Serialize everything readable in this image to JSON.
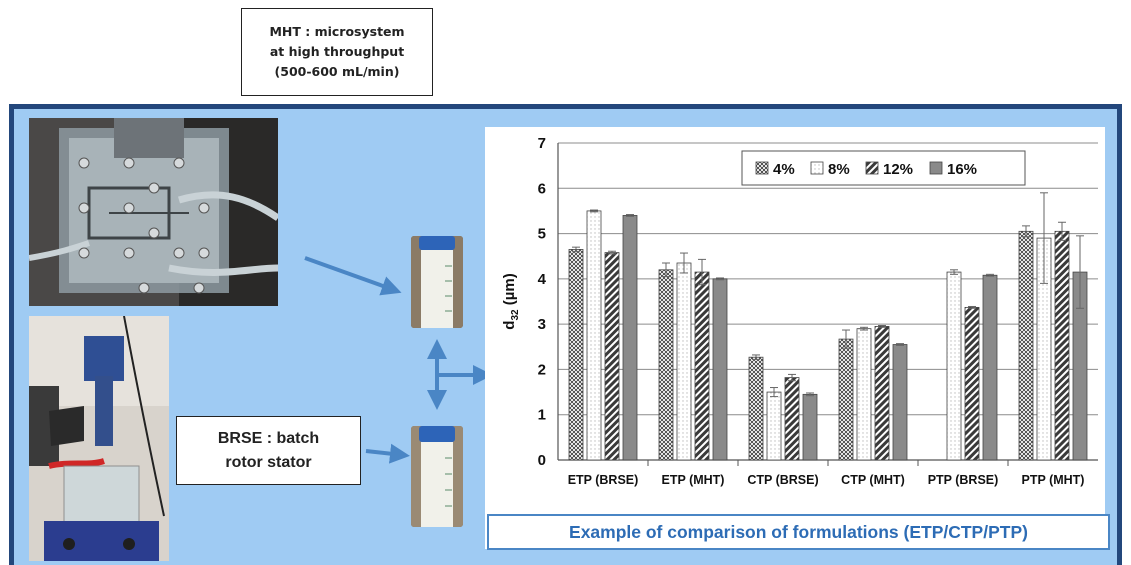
{
  "mht_label": {
    "line1": "MHT : microsystem",
    "line2": "at high throughput",
    "line3": "(500-600 mL/min)"
  },
  "brse_label": {
    "line1": "BRSE : batch",
    "line2": "rotor stator"
  },
  "caption": "Example of comparison of formulations (ETP/CTP/PTP)",
  "colors": {
    "panel_background": "#9fcbf3",
    "panel_border": "#23477c",
    "arrow": "#4a86c5",
    "caption_text": "#2d6cb5"
  },
  "chart_data": {
    "type": "bar",
    "title": "",
    "xlabel": "",
    "ylabel_main": "d",
    "ylabel_sub": "32",
    "ylabel_unit": " (µm)",
    "ylim": [
      0,
      7
    ],
    "yticks": [
      "0",
      "1",
      "2",
      "3",
      "4",
      "5",
      "6",
      "7"
    ],
    "grid": true,
    "legend_position": "top-right",
    "categories": [
      "ETP (BRSE)",
      "ETP (MHT)",
      "CTP (BRSE)",
      "CTP (MHT)",
      "PTP (BRSE)",
      "PTP (MHT)"
    ],
    "series": [
      {
        "name": "4%",
        "pattern": "checker",
        "values": [
          4.65,
          4.2,
          2.27,
          2.67,
          null,
          5.05
        ],
        "errors": [
          0.05,
          0.15,
          0.05,
          0.2,
          null,
          0.12
        ]
      },
      {
        "name": "8%",
        "pattern": "dots",
        "values": [
          5.5,
          4.35,
          1.5,
          2.9,
          4.15,
          4.9
        ],
        "errors": [
          0.02,
          0.22,
          0.1,
          0.03,
          0.05,
          1.0
        ]
      },
      {
        "name": "12%",
        "pattern": "diagonal",
        "values": [
          4.58,
          4.15,
          1.82,
          2.95,
          3.37,
          5.05
        ],
        "errors": [
          0.03,
          0.28,
          0.07,
          0.02,
          0.02,
          0.2
        ]
      },
      {
        "name": "16%",
        "pattern": "solid",
        "values": [
          5.4,
          4.0,
          1.45,
          2.55,
          4.08,
          4.15
        ],
        "errors": [
          0.02,
          0.02,
          0.03,
          0.02,
          0.02,
          0.8
        ]
      }
    ]
  }
}
